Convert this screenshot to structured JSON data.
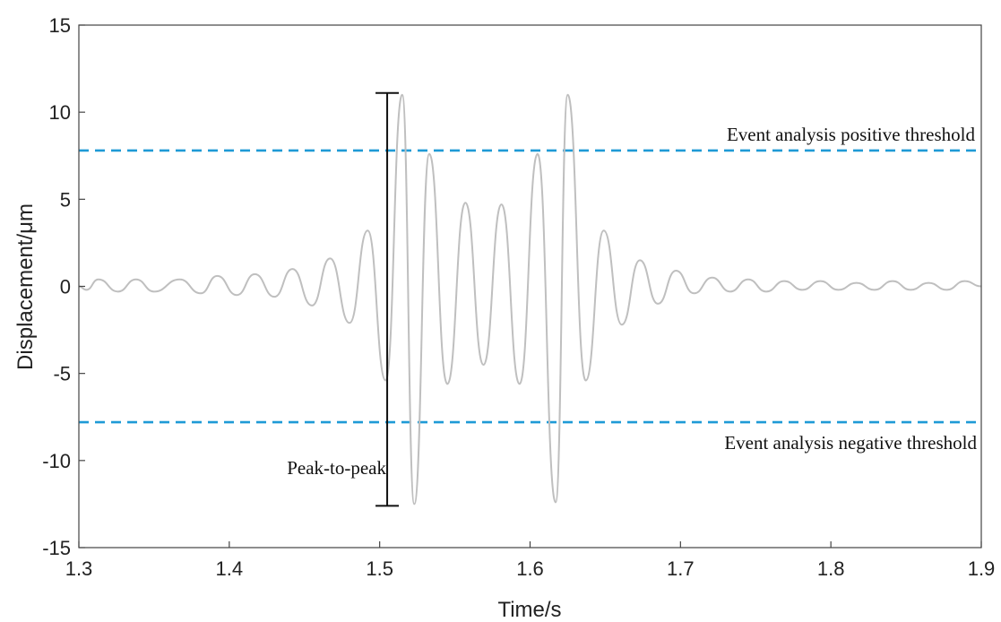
{
  "chart_data": {
    "type": "line",
    "title": "",
    "xlabel": "Time/s",
    "ylabel": "Displacement/μm",
    "xlim": [
      1.3,
      1.9
    ],
    "ylim": [
      -15,
      15
    ],
    "xticks": [
      1.3,
      1.4,
      1.5,
      1.6,
      1.7,
      1.8,
      1.9
    ],
    "xtick_labels": [
      "1.3",
      "1.4",
      "1.5",
      "1.6",
      "1.7",
      "1.8",
      "1.9"
    ],
    "yticks": [
      15,
      10,
      5,
      0,
      -5,
      -10,
      -15
    ],
    "ytick_labels": [
      "15",
      "10",
      "5",
      "0",
      "-5",
      "-10",
      "-15"
    ],
    "grid": false,
    "series": [
      {
        "color": "#bfbfbf",
        "x": [
          1.3,
          1.305,
          1.313,
          1.326,
          1.338,
          1.35,
          1.367,
          1.381,
          1.392,
          1.405,
          1.417,
          1.43,
          1.442,
          1.455,
          1.467,
          1.48,
          1.492,
          1.504,
          1.515,
          1.523,
          1.533,
          1.545,
          1.557,
          1.569,
          1.581,
          1.593,
          1.605,
          1.617,
          1.625,
          1.637,
          1.649,
          1.661,
          1.673,
          1.685,
          1.697,
          1.709,
          1.721,
          1.733,
          1.745,
          1.757,
          1.769,
          1.781,
          1.793,
          1.805,
          1.817,
          1.829,
          1.841,
          1.853,
          1.865,
          1.877,
          1.889,
          1.9
        ],
        "y": [
          0.0,
          -0.2,
          0.4,
          -0.3,
          0.4,
          -0.3,
          0.4,
          -0.4,
          0.6,
          -0.5,
          0.7,
          -0.6,
          1.0,
          -1.1,
          1.6,
          -2.1,
          3.2,
          -5.4,
          11.0,
          -12.5,
          7.6,
          -5.6,
          4.8,
          -4.5,
          4.7,
          -5.6,
          7.6,
          -12.4,
          11.0,
          -5.4,
          3.2,
          -2.2,
          1.5,
          -1.0,
          0.9,
          -0.4,
          0.5,
          -0.3,
          0.4,
          -0.3,
          0.3,
          -0.2,
          0.3,
          -0.2,
          0.2,
          -0.2,
          0.3,
          -0.2,
          0.2,
          -0.2,
          0.3,
          0.0
        ]
      }
    ],
    "thresholds": [
      {
        "value": 7.8,
        "color": "#1f9ad6",
        "style": "dashed",
        "label": "Event analysis positive threshold"
      },
      {
        "value": -7.8,
        "color": "#1f9ad6",
        "style": "dashed",
        "label": "Event analysis negative threshold"
      }
    ],
    "peak_to_peak": {
      "x": 1.505,
      "y_top": 11.1,
      "y_bottom": -12.6,
      "label": "Peak-to-peak",
      "color": "#111111"
    }
  }
}
